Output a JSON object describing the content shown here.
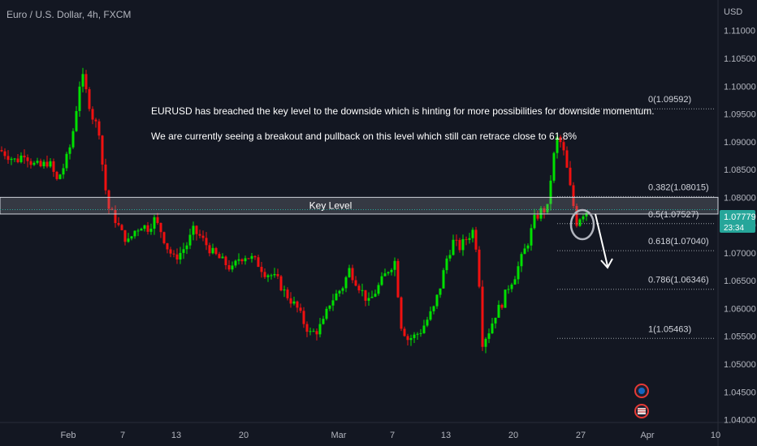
{
  "chart_data": {
    "type": "candlestick",
    "title": "Euro / U.S. Dollar, 4h, FXCM",
    "currency": "USD",
    "ylim": [
      1.0395,
      1.1155
    ],
    "y_ticks": [
      "1.11000",
      "1.10500",
      "1.10000",
      "1.09500",
      "1.09000",
      "1.08500",
      "1.08000",
      "1.07500",
      "1.07000",
      "1.06500",
      "1.06000",
      "1.05500",
      "1.05000",
      "1.04500",
      "1.04000"
    ],
    "x_ticks": [
      "Feb",
      "7",
      "13",
      "20",
      "Mar",
      "7",
      "13",
      "20",
      "27",
      "Apr",
      "10"
    ],
    "last_price": "1.07779",
    "countdown": "23:34",
    "annotations": [
      "EURUSD has breached the key level to the downside which is hinting for more possibilities for downside momentum.",
      "We are currently seeing a breakout and pullback on this level which still can retrace close to 61.8%"
    ],
    "key_level": {
      "label": "Key Level",
      "from": 1.077,
      "to": 1.08
    },
    "fibonacci": [
      {
        "label": "0(1.09592)",
        "price": 1.09592
      },
      {
        "label": "0.382(1.08015)",
        "price": 1.08015
      },
      {
        "label": "0.5(1.07527)",
        "price": 1.07527
      },
      {
        "label": "0.618(1.07040)",
        "price": 1.0704
      },
      {
        "label": "0.786(1.06346)",
        "price": 1.06346
      },
      {
        "label": "1(1.05463)",
        "price": 1.05463
      }
    ],
    "price_path": [
      [
        0,
        1.0885
      ],
      [
        10,
        1.0875
      ],
      [
        20,
        1.0865
      ],
      [
        30,
        1.088
      ],
      [
        40,
        1.086
      ],
      [
        50,
        1.0855
      ],
      [
        60,
        1.0865
      ],
      [
        70,
        1.083
      ],
      [
        80,
        1.086
      ],
      [
        88,
        1.09
      ],
      [
        94,
        1.096
      ],
      [
        100,
        1.1025
      ],
      [
        106,
        1.099
      ],
      [
        114,
        1.0945
      ],
      [
        122,
        1.092
      ],
      [
        128,
        1.083
      ],
      [
        134,
        1.078
      ],
      [
        142,
        1.076
      ],
      [
        150,
        1.0735
      ],
      [
        158,
        1.072
      ],
      [
        166,
        1.074
      ],
      [
        174,
        1.075
      ],
      [
        182,
        1.0745
      ],
      [
        190,
        1.076
      ],
      [
        198,
        1.074
      ],
      [
        206,
        1.071
      ],
      [
        214,
        1.069
      ],
      [
        222,
        1.07
      ],
      [
        230,
        1.0715
      ],
      [
        238,
        1.074
      ],
      [
        246,
        1.073
      ],
      [
        254,
        1.0715
      ],
      [
        262,
        1.07
      ],
      [
        270,
        1.069
      ],
      [
        278,
        1.068
      ],
      [
        286,
        1.067
      ],
      [
        294,
        1.069
      ],
      [
        302,
        1.0695
      ],
      [
        310,
        1.069
      ],
      [
        318,
        1.068
      ],
      [
        326,
        1.0665
      ],
      [
        334,
        1.066
      ],
      [
        342,
        1.065
      ],
      [
        350,
        1.063
      ],
      [
        358,
        1.0615
      ],
      [
        366,
        1.06
      ],
      [
        374,
        1.0575
      ],
      [
        382,
        1.0555
      ],
      [
        390,
        1.056
      ],
      [
        398,
        1.0575
      ],
      [
        406,
        1.061
      ],
      [
        414,
        1.0625
      ],
      [
        422,
        1.064
      ],
      [
        430,
        1.067
      ],
      [
        438,
        1.065
      ],
      [
        446,
        1.063
      ],
      [
        454,
        1.061
      ],
      [
        462,
        1.063
      ],
      [
        470,
        1.065
      ],
      [
        478,
        1.067
      ],
      [
        486,
        1.0685
      ],
      [
        494,
        1.057
      ],
      [
        502,
        1.0545
      ],
      [
        510,
        1.055
      ],
      [
        518,
        1.056
      ],
      [
        526,
        1.058
      ],
      [
        534,
        1.06
      ],
      [
        542,
        1.064
      ],
      [
        550,
        1.069
      ],
      [
        558,
        1.072
      ],
      [
        566,
        1.071
      ],
      [
        574,
        1.0725
      ],
      [
        582,
        1.074
      ],
      [
        588,
        1.07
      ],
      [
        594,
        1.054
      ],
      [
        602,
        1.056
      ],
      [
        610,
        1.059
      ],
      [
        618,
        1.061
      ],
      [
        626,
        1.064
      ],
      [
        634,
        1.066
      ],
      [
        642,
        1.069
      ],
      [
        650,
        1.072
      ],
      [
        658,
        1.076
      ],
      [
        666,
        1.0775
      ],
      [
        674,
        1.078
      ],
      [
        680,
        1.086
      ],
      [
        686,
        1.0905
      ],
      [
        692,
        1.0895
      ],
      [
        698,
        1.085
      ],
      [
        704,
        1.08
      ],
      [
        710,
        1.0755
      ],
      [
        716,
        1.077
      ],
      [
        722,
        1.0775
      ],
      [
        728,
        1.0779
      ]
    ]
  }
}
